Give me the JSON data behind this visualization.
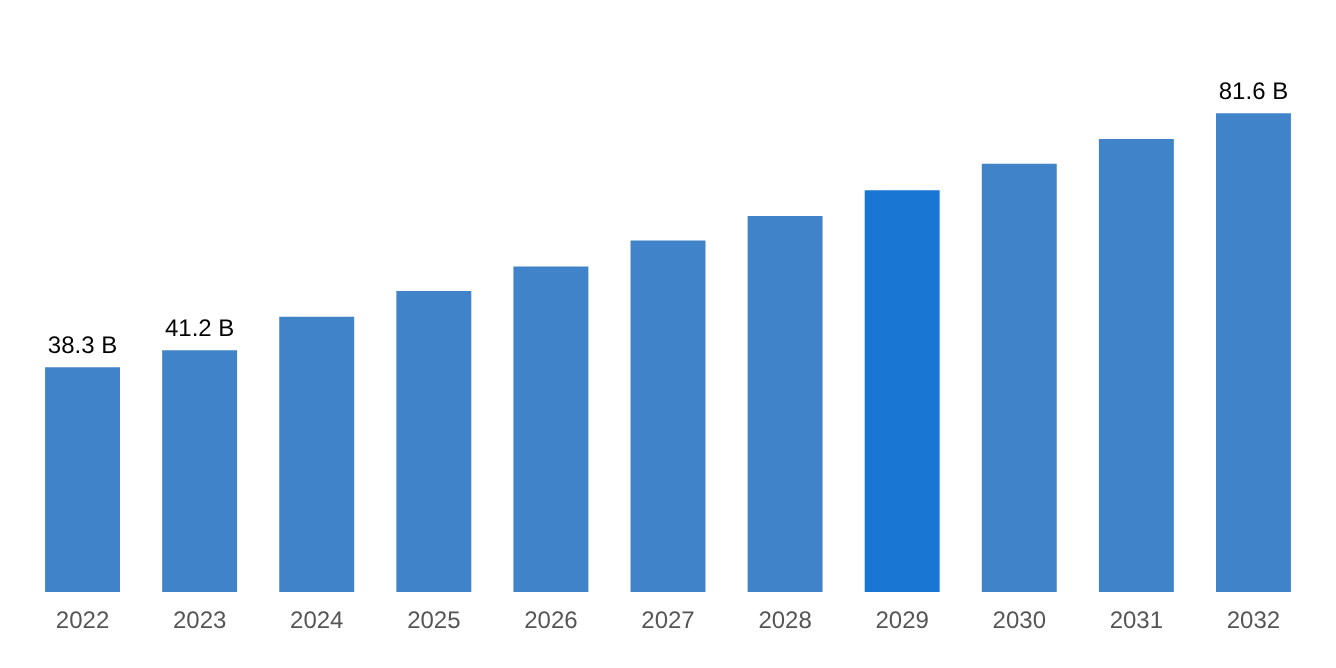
{
  "chart_data": {
    "type": "bar",
    "categories": [
      "2022",
      "2023",
      "2024",
      "2025",
      "2026",
      "2027",
      "2028",
      "2029",
      "2030",
      "2031",
      "2032"
    ],
    "values": [
      38.3,
      41.2,
      46.9,
      51.3,
      55.5,
      59.9,
      64.1,
      68.5,
      73.0,
      77.2,
      81.6
    ],
    "value_labels": [
      "38.3 B",
      "41.2 B",
      null,
      null,
      null,
      null,
      null,
      null,
      null,
      null,
      "81.6 B"
    ],
    "colors": [
      "#4183c8",
      "#4183c8",
      "#4183c8",
      "#4183c8",
      "#4183c8",
      "#4183c8",
      "#4183c8",
      "#1976d2",
      "#4183c8",
      "#4183c8",
      "#4183c8"
    ]
  }
}
